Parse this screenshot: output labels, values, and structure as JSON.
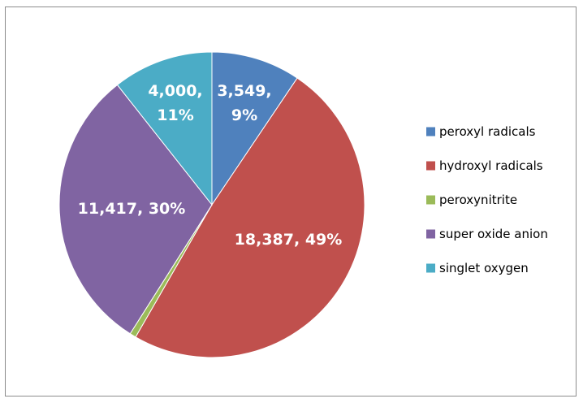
{
  "chart_data": {
    "type": "pie",
    "series": [
      {
        "name": "peroxyl radicals",
        "value": 3549,
        "percent": 9,
        "label_lines": [
          "3,549,",
          "9%"
        ],
        "color": "#4f81bd"
      },
      {
        "name": "hydroxyl radicals",
        "value": 18387,
        "percent": 49,
        "label_lines": [
          "18,387, 49%"
        ],
        "color": "#c0504d"
      },
      {
        "name": "peroxynitrite",
        "value": 250,
        "percent": 1,
        "label_lines": [],
        "color": "#9bbb59"
      },
      {
        "name": "super oxide anion",
        "value": 11417,
        "percent": 30,
        "label_lines": [
          "11,417, 30%"
        ],
        "color": "#8064a2"
      },
      {
        "name": "singlet oxygen",
        "value": 4000,
        "percent": 11,
        "label_lines": [
          "4,000,",
          "11%"
        ],
        "color": "#4bacc6"
      }
    ],
    "legend_position": "right"
  }
}
